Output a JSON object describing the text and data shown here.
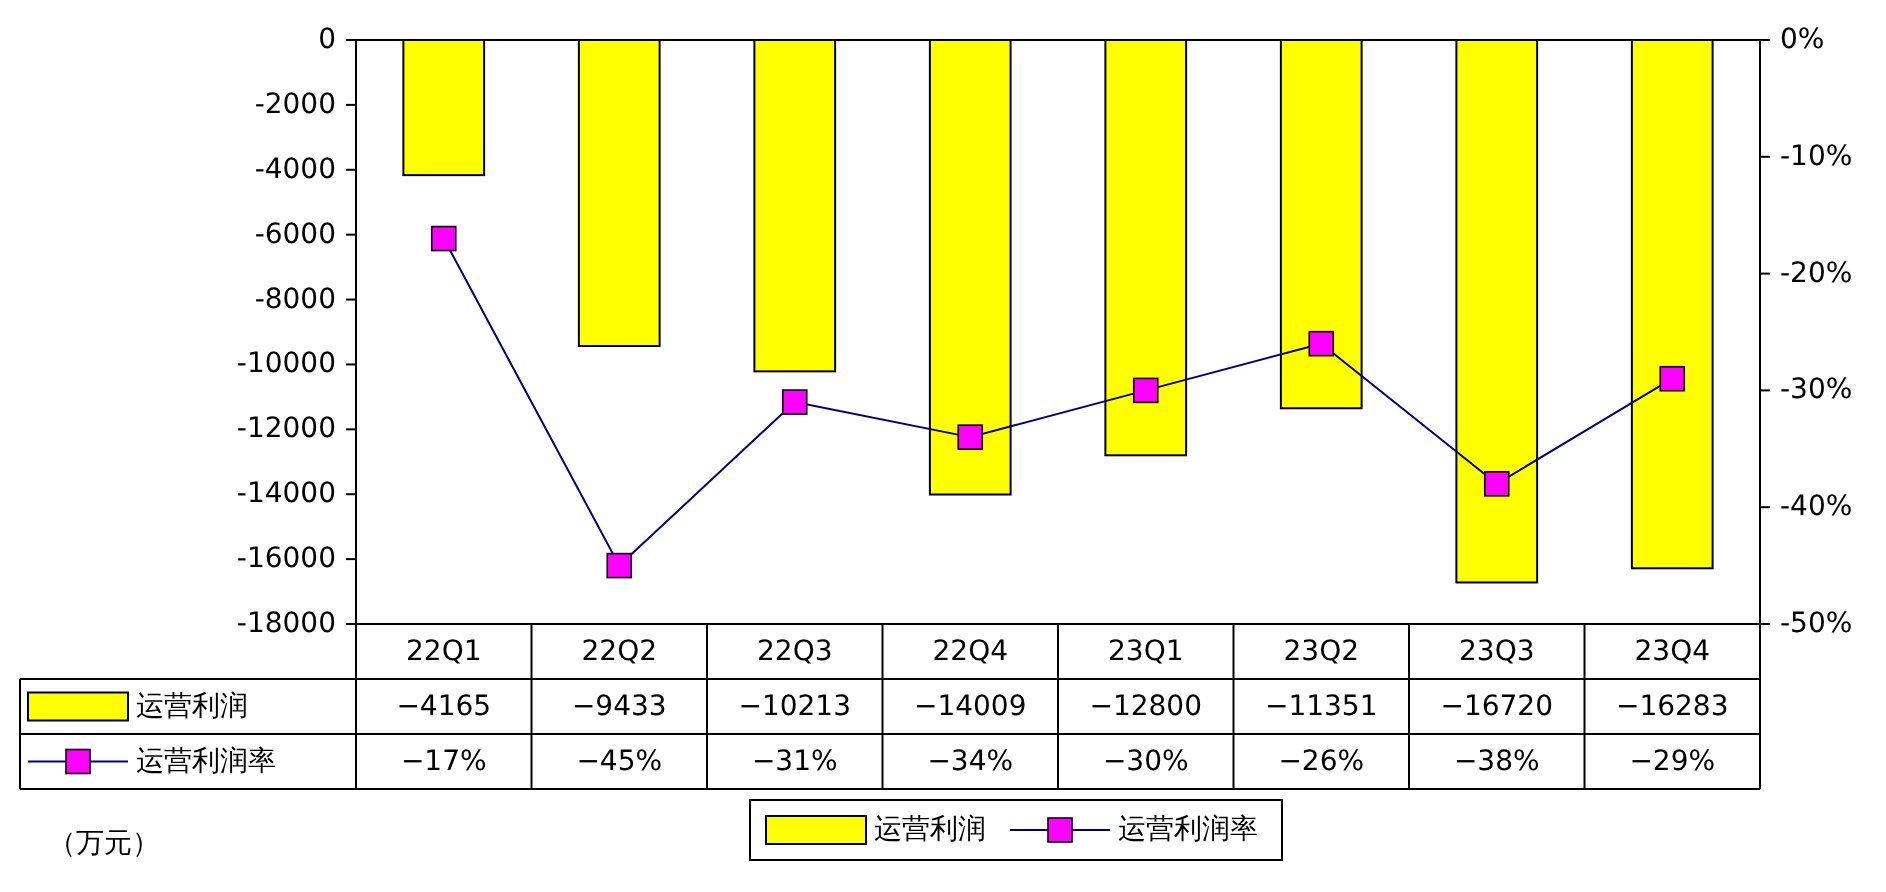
{
  "chart_data": {
    "type": "bar",
    "categories": [
      "22Q1",
      "22Q2",
      "22Q3",
      "22Q4",
      "23Q1",
      "23Q2",
      "23Q3",
      "23Q4"
    ],
    "series": [
      {
        "name": "运营利润",
        "color": "#ffff00",
        "values": [
          -4165,
          -9433,
          -10213,
          -14009,
          -12800,
          -11351,
          -16720,
          -16283
        ],
        "value_labels": [
          "−4165",
          "−9433",
          "−10213",
          "−14009",
          "−12800",
          "−11351",
          "−16720",
          "−16283"
        ]
      },
      {
        "name": "运营利润率",
        "type": "line",
        "axis": "y2",
        "color": "#ff00ff",
        "values": [
          -17,
          -45,
          -31,
          -34,
          -30,
          -26,
          -38,
          -29
        ],
        "value_labels": [
          "−17%",
          "−45%",
          "−31%",
          "−34%",
          "−30%",
          "−26%",
          "−38%",
          "−29%"
        ]
      }
    ],
    "ylim": [
      -18000,
      0
    ],
    "yticks": [
      0,
      -2000,
      -4000,
      -6000,
      -8000,
      -10000,
      -12000,
      -14000,
      -16000,
      -18000
    ],
    "y2lim": [
      -50,
      0
    ],
    "y2ticks": [
      {
        "value": 0,
        "label": "0%"
      },
      {
        "value": -10,
        "label": "-10%"
      },
      {
        "value": -20,
        "label": "-20%"
      },
      {
        "value": -30,
        "label": "-30%"
      },
      {
        "value": -40,
        "label": "-40%"
      },
      {
        "value": -50,
        "label": "-50%"
      }
    ],
    "marker": "square",
    "legend": "bottom",
    "grid": false,
    "annotations": [
      "（万元）"
    ]
  }
}
